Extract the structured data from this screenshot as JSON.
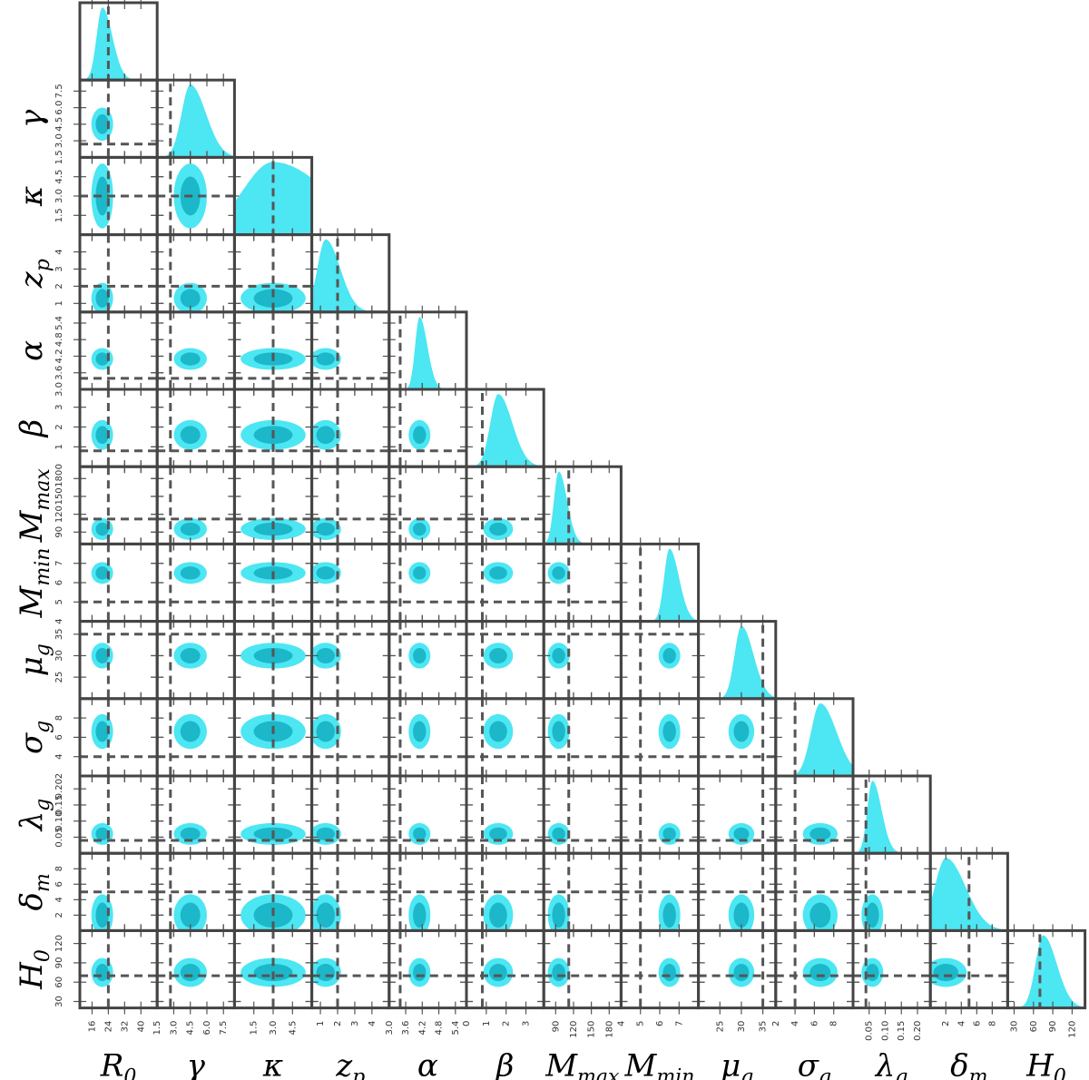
{
  "chart_data": {
    "type": "corner",
    "title": "",
    "colors": {
      "fill_outer": "#4de6f3",
      "fill_inner": "#1cb7c9",
      "marginal": "#4de6f3",
      "truth_line": "#555555",
      "frame": "#444444"
    },
    "parameters": [
      {
        "name": "R0",
        "label_base": "R",
        "label_sub": "0",
        "range": [
          10,
          48
        ],
        "ticks": [
          "16",
          "24",
          "32",
          "40"
        ],
        "truth": 24,
        "peak": 21,
        "width": 3.5
      },
      {
        "name": "gamma",
        "label_base": "γ",
        "label_sub": "",
        "range": [
          1.5,
          8.5
        ],
        "ticks": [
          "1.5",
          "3.0",
          "4.5",
          "6.0",
          "7.5"
        ],
        "truth": 2.7,
        "peak": 4.5,
        "width": 1.0
      },
      {
        "name": "kappa",
        "label_base": "κ",
        "label_sub": "",
        "range": [
          0,
          6
        ],
        "ticks": [
          "1.5",
          "3.0",
          "4.5"
        ],
        "truth": 3.0,
        "peak": 3.0,
        "width": 3.0
      },
      {
        "name": "z_p",
        "label_base": "z",
        "label_sub": "p",
        "range": [
          0.5,
          5.0
        ],
        "ticks": [
          "1",
          "2",
          "3",
          "4"
        ],
        "truth": 2.0,
        "peak": 1.3,
        "width": 0.6
      },
      {
        "name": "alpha",
        "label_base": "α",
        "label_sub": "",
        "range": [
          3.0,
          5.8
        ],
        "ticks": [
          "3.0",
          "3.6",
          "4.2",
          "4.8",
          "5.4"
        ],
        "truth": 3.4,
        "peak": 4.1,
        "width": 0.2
      },
      {
        "name": "beta",
        "label_base": "β",
        "label_sub": "",
        "range": [
          0,
          3.9
        ],
        "ticks": [
          "0",
          "1",
          "2",
          "3"
        ],
        "truth": 0.8,
        "peak": 1.6,
        "width": 0.5
      },
      {
        "name": "M_max",
        "label_base": "M",
        "label_sub": "max",
        "range": [
          70,
          200
        ],
        "ticks": [
          "90",
          "120",
          "150",
          "180"
        ],
        "truth": 112,
        "peak": 95,
        "width": 10
      },
      {
        "name": "M_min",
        "label_base": "M",
        "label_sub": "min",
        "range": [
          4,
          8
        ],
        "ticks": [
          "4",
          "5",
          "6",
          "7"
        ],
        "truth": 5.0,
        "peak": 6.5,
        "width": 0.35
      },
      {
        "name": "mu_g",
        "label_base": "μ",
        "label_sub": "g",
        "range": [
          20,
          38
        ],
        "ticks": [
          "25",
          "30",
          "35"
        ],
        "truth": 35,
        "peak": 30,
        "width": 2.0
      },
      {
        "name": "sigma_g",
        "label_base": "σ",
        "label_sub": "g",
        "range": [
          2,
          10
        ],
        "ticks": [
          "2",
          "4",
          "6",
          "8"
        ],
        "truth": 4.0,
        "peak": 6.6,
        "width": 1.2
      },
      {
        "name": "lambda_g",
        "label_base": "λ",
        "label_sub": "g",
        "range": [
          0,
          0.24
        ],
        "ticks": [
          "0.05",
          "0.10",
          "0.15",
          "0.20"
        ],
        "truth": 0.04,
        "peak": 0.06,
        "width": 0.02
      },
      {
        "name": "delta_m",
        "label_base": "δ",
        "label_sub": "m",
        "range": [
          0,
          10
        ],
        "ticks": [
          "2",
          "4",
          "6",
          "8"
        ],
        "truth": 5.0,
        "peak": 2.0,
        "width": 1.8
      },
      {
        "name": "H0",
        "label_base": "H",
        "label_sub": "0",
        "range": [
          20,
          140
        ],
        "ticks": [
          "30",
          "60",
          "90",
          "120"
        ],
        "truth": 70,
        "peak": 75,
        "width": 15
      }
    ]
  }
}
